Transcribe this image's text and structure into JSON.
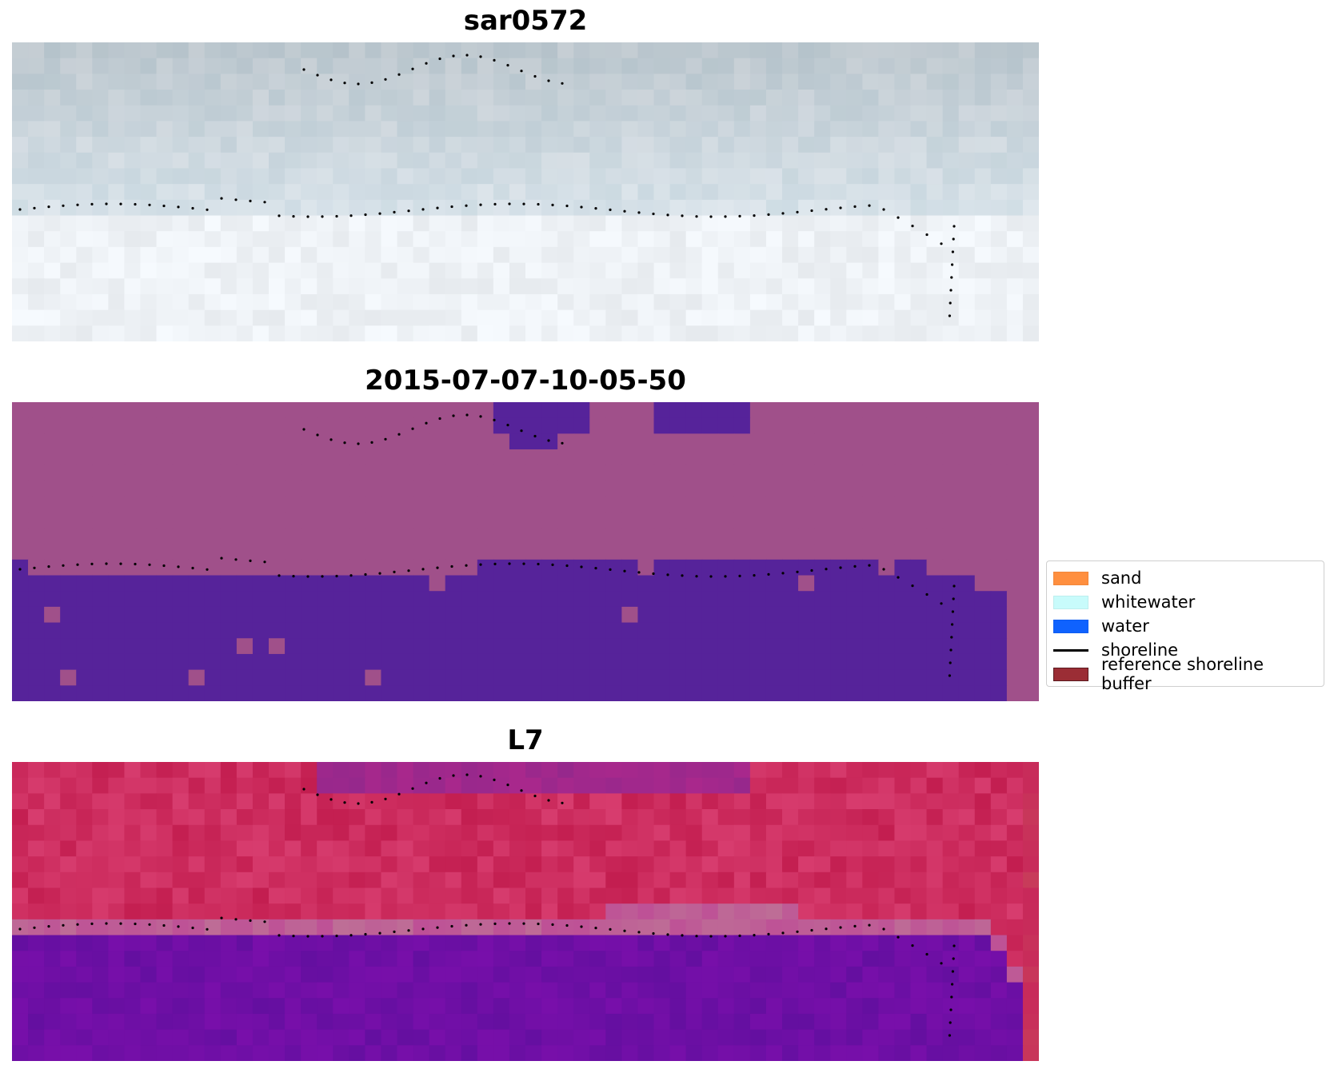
{
  "panels": [
    {
      "title": "sar0572",
      "palette": "rgb"
    },
    {
      "title": "2015-07-07-10-05-50",
      "palette": "classified"
    },
    {
      "title": "L7",
      "palette": "index"
    }
  ],
  "legend": {
    "items": [
      {
        "label": "sand",
        "color": "#ff8f3f",
        "kind": "patch"
      },
      {
        "label": "whitewater",
        "color": "#c8fbfb",
        "kind": "patch"
      },
      {
        "label": "water",
        "color": "#0f62fe",
        "kind": "patch"
      },
      {
        "label": "shoreline",
        "color": "#000000",
        "kind": "line"
      },
      {
        "label": "reference shoreline buffer",
        "color": "#9b2d35",
        "kind": "patch"
      }
    ]
  },
  "colors": {
    "classified_land": "#a0508a",
    "classified_water": "#56239a",
    "index_red": "#c2194a",
    "index_purple": "#6a1a9c",
    "shoreline_dots": "#000000"
  }
}
